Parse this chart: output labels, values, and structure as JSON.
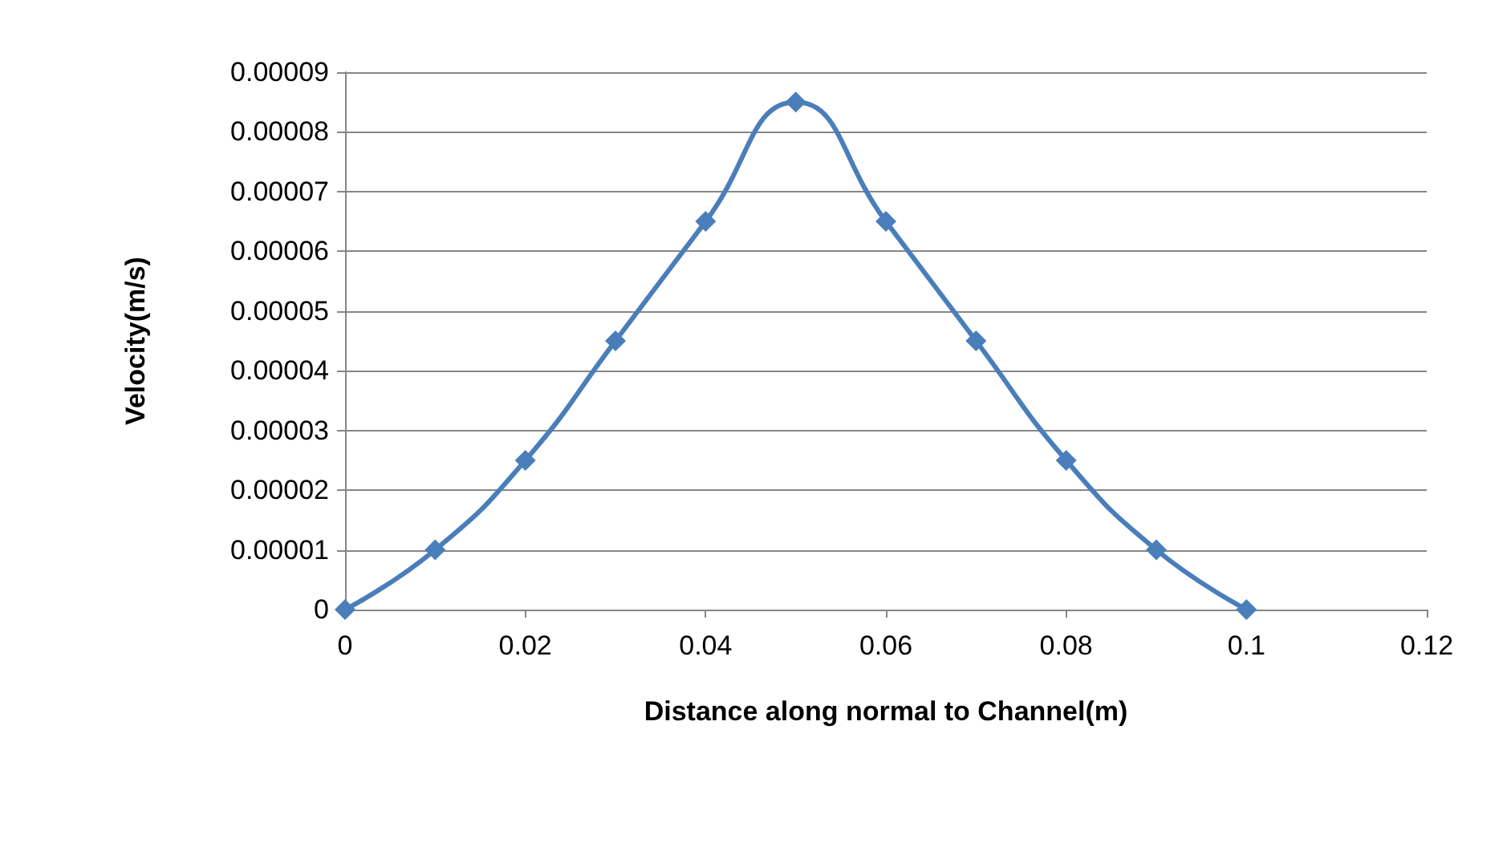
{
  "chart_data": {
    "type": "line",
    "xlabel": "Distance along normal to Channel(m)",
    "ylabel": "Velocity(m/s)",
    "x": [
      0,
      0.01,
      0.02,
      0.03,
      0.04,
      0.05,
      0.06,
      0.07,
      0.08,
      0.09,
      0.1
    ],
    "series": [
      {
        "color": "#4a7ebb",
        "values": [
          0,
          1e-05,
          2.5e-05,
          4.5e-05,
          6.5e-05,
          8.5e-05,
          6.5e-05,
          4.5e-05,
          2.5e-05,
          1e-05,
          0
        ]
      }
    ],
    "xlim": [
      0,
      0.12
    ],
    "xticks": [
      0,
      0.02,
      0.04,
      0.06,
      0.08,
      0.1,
      0.12
    ],
    "ylim": [
      0,
      9e-05
    ],
    "yticks": [
      0,
      {
        "value": 1e-05,
        "label": "0.00001"
      },
      {
        "value": 2e-05,
        "label": "0.00002"
      },
      {
        "value": 3e-05,
        "label": "0.00003"
      },
      {
        "value": 4e-05,
        "label": "0.00004"
      },
      {
        "value": 5e-05,
        "label": "0.00005"
      },
      {
        "value": 6e-05,
        "label": "0.00006"
      },
      {
        "value": 7e-05,
        "label": "0.00007"
      },
      {
        "value": 8e-05,
        "label": "0.00008"
      },
      {
        "value": 9e-05,
        "label": "0.00009"
      }
    ],
    "grid": "y",
    "marker": "diamond",
    "line_style": "solid"
  }
}
